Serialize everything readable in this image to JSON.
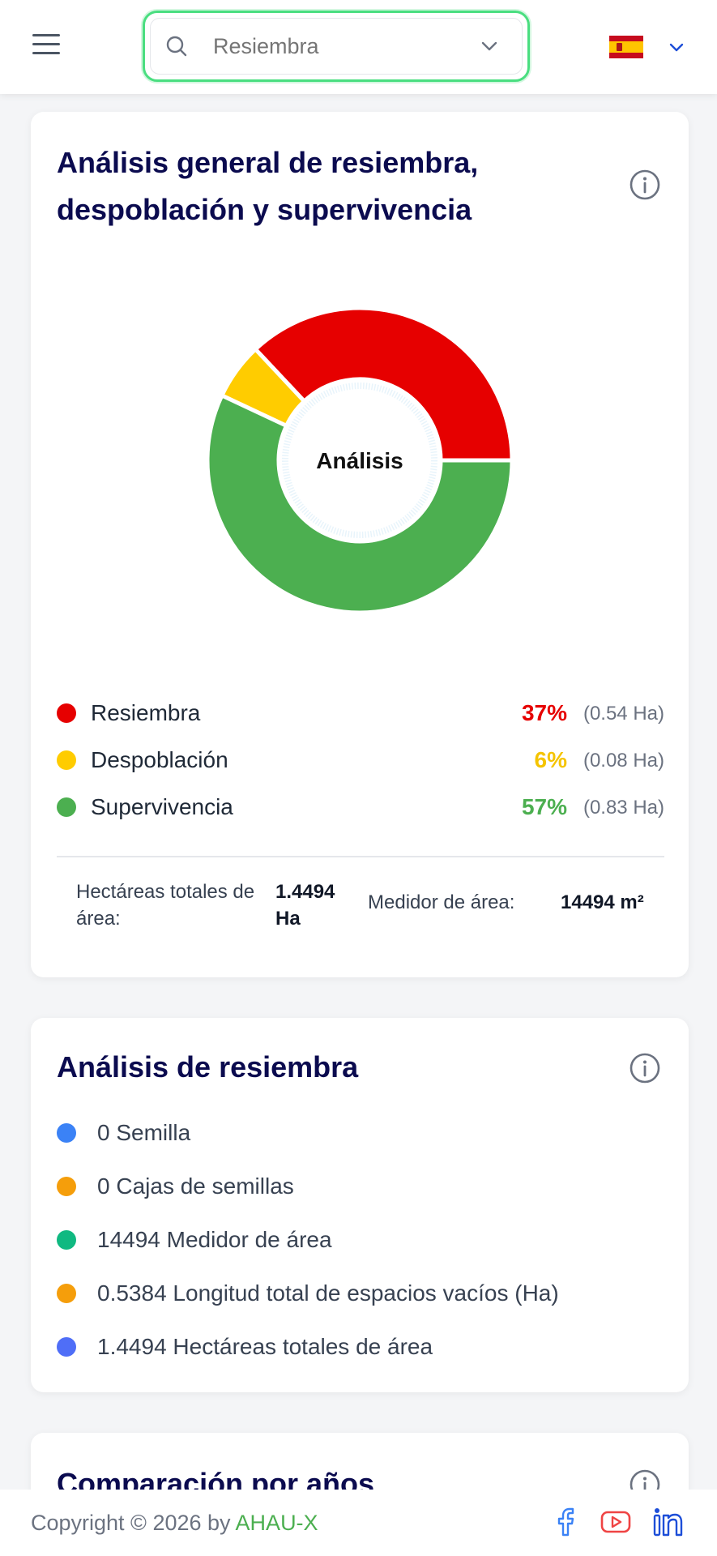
{
  "header": {
    "search_placeholder": "Resiembra",
    "language": "es"
  },
  "card_general": {
    "title": "Análisis general de resiembra, despoblación y supervivencia",
    "center_label": "Análisis",
    "legend": [
      {
        "label": "Resiembra",
        "percent": "37%",
        "hectares": "(0.54 Ha)",
        "color": "#e60000"
      },
      {
        "label": "Despoblación",
        "percent": "6%",
        "hectares": "(0.08 Ha)",
        "color": "#ffcc00"
      },
      {
        "label": "Supervivencia",
        "percent": "57%",
        "hectares": "(0.83 Ha)",
        "color": "#4caf50"
      }
    ],
    "total_hectares_label": "Hectáreas totales de área:",
    "total_hectares_value": "1.4494 Ha",
    "area_meter_label": "Medidor de área:",
    "area_meter_value": "14494 m²"
  },
  "chart_data": {
    "type": "pie",
    "categories": [
      "Resiembra",
      "Despoblación",
      "Supervivencia"
    ],
    "values": [
      37,
      6,
      57
    ],
    "colors": [
      "#e60000",
      "#ffcc00",
      "#4caf50"
    ],
    "title": "",
    "center_text": "Análisis"
  },
  "card_resiembra": {
    "title": "Análisis de resiembra",
    "items": [
      {
        "text": "0 Semilla",
        "color": "#3b82f6"
      },
      {
        "text": "0 Cajas de semillas",
        "color": "#f59e0b"
      },
      {
        "text": "14494 Medidor de área",
        "color": "#10b981"
      },
      {
        "text": "0.5384 Longitud total de espacios vacíos (Ha)",
        "color": "#f59e0b"
      },
      {
        "text": "1.4494 Hectáreas totales de área",
        "color": "#4f6ef7"
      }
    ]
  },
  "card_comparacion": {
    "title": "Comparación por años"
  },
  "footer": {
    "copyright_prefix": "Copyright © 2026 by ",
    "brand": "AHAU-X"
  }
}
